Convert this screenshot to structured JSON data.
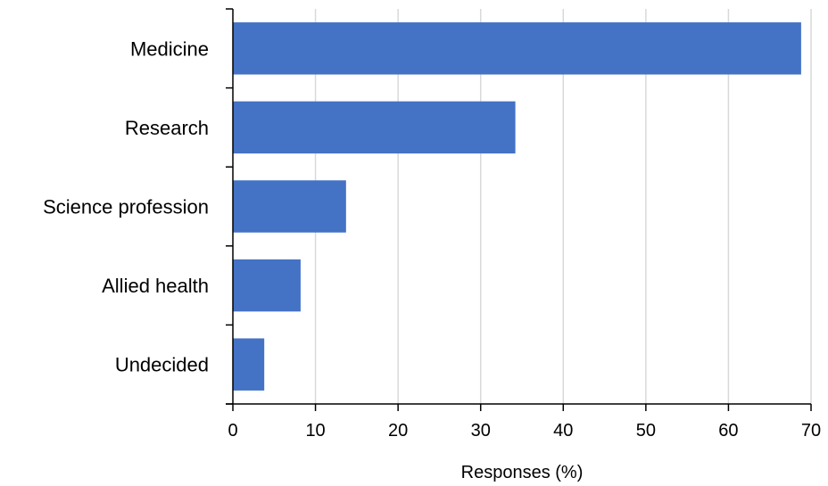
{
  "chart_data": {
    "type": "bar",
    "orientation": "horizontal",
    "categories": [
      "Medicine",
      "Research",
      "Science profession",
      "Allied health",
      "Undecided"
    ],
    "values": [
      68.8,
      34.2,
      13.7,
      8.2,
      3.8
    ],
    "xlabel": "Responses (%)",
    "ylabel": "",
    "xlim": [
      0,
      70
    ],
    "xticks": [
      "0",
      "10",
      "20",
      "30",
      "40",
      "50",
      "60",
      "70"
    ],
    "grid": "vertical",
    "legend": "none",
    "bar_color": "#4472C4",
    "grid_color": "#D9D9D9",
    "axis_color": "#000000"
  }
}
